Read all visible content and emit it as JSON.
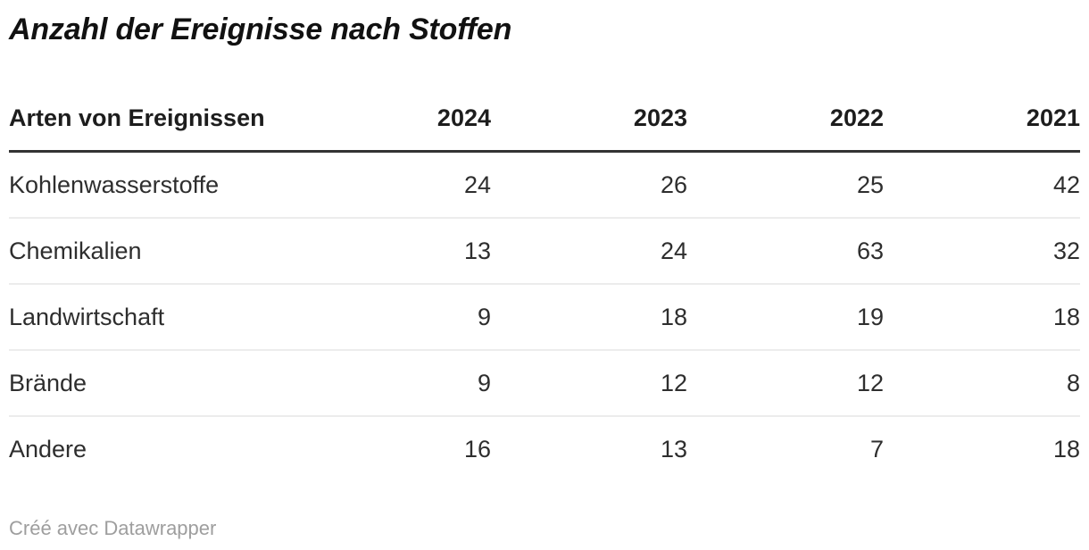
{
  "title": "Anzahl der Ereignisse nach Stoffen",
  "table": {
    "header": [
      "Arten von Ereignissen",
      "2024",
      "2023",
      "2022",
      "2021"
    ],
    "rows": [
      {
        "cells": [
          "Kohlenwasserstoffe",
          "24",
          "26",
          "25",
          "42"
        ]
      },
      {
        "cells": [
          "Chemikalien",
          "13",
          "24",
          "63",
          "32"
        ]
      },
      {
        "cells": [
          "Landwirtschaft",
          "9",
          "18",
          "19",
          "18"
        ]
      },
      {
        "cells": [
          "Brände",
          "9",
          "12",
          "12",
          "8"
        ]
      },
      {
        "cells": [
          "Andere",
          "16",
          "13",
          "7",
          "18"
        ]
      }
    ]
  },
  "footer": {
    "attribution": "Créé avec Datawrapper"
  },
  "colors": {
    "title_text": "#111111",
    "header_text": "#1d1d1d",
    "body_text": "#2e2e2e",
    "header_rule": "#333333",
    "row_rule": "#ececec",
    "attribution_text": "#9e9e9e",
    "background": "#ffffff"
  },
  "chart_data": {
    "type": "table",
    "title": "Anzahl der Ereignisse nach Stoffen",
    "columns": [
      "Arten von Ereignissen",
      "2024",
      "2023",
      "2022",
      "2021"
    ],
    "rows": [
      [
        "Kohlenwasserstoffe",
        24,
        26,
        25,
        42
      ],
      [
        "Chemikalien",
        13,
        24,
        63,
        32
      ],
      [
        "Landwirtschaft",
        9,
        18,
        19,
        18
      ],
      [
        "Brände",
        9,
        12,
        12,
        8
      ],
      [
        "Andere",
        16,
        13,
        7,
        18
      ]
    ],
    "layout": {
      "header_rule": "thick dark line below header",
      "row_rules": "thin light gray lines between rows, none after last row",
      "numeric_alignment": "right",
      "label_alignment": "left"
    }
  }
}
